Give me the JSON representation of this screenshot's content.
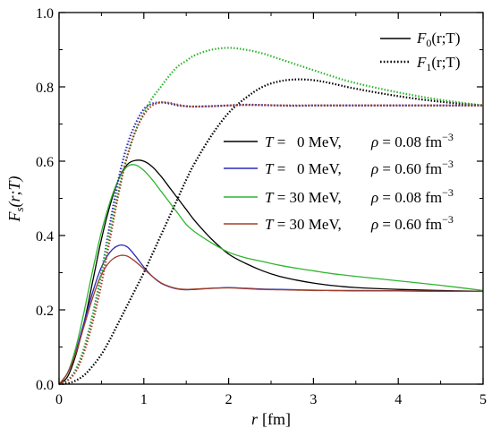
{
  "chart_data": {
    "type": "line",
    "xlabel": {
      "var": "r",
      "unit": "[fm]"
    },
    "ylabel": {
      "var": "F",
      "sub": "s",
      "args": "(r;T)"
    },
    "xlim": [
      0,
      5
    ],
    "ylim": [
      0,
      1.0
    ],
    "x_ticks": [
      0,
      1,
      2,
      3,
      4,
      5
    ],
    "x_tick_labels": [
      "0",
      "1",
      "2",
      "3",
      "4",
      "5"
    ],
    "y_ticks": [
      0,
      0.2,
      0.4,
      0.6,
      0.8,
      1.0
    ],
    "y_tick_labels": [
      "0.0",
      "0.2",
      "0.4",
      "0.6",
      "0.8",
      "1.0"
    ],
    "legend_style": [
      {
        "func": "F",
        "sub": "0",
        "args": "(r;T)",
        "dash": "solid"
      },
      {
        "func": "F",
        "sub": "1",
        "args": "(r;T)",
        "dash": "dotted"
      }
    ],
    "legend_series": [
      {
        "T_label": "T",
        "T_value": "=   0 MeV,",
        "rho_label": "ρ",
        "rho_value": "= 0.08 fm",
        "rho_exp": "−3",
        "color": "#000000"
      },
      {
        "T_label": "T",
        "T_value": "=   0 MeV,",
        "rho_label": "ρ",
        "rho_value": "= 0.60 fm",
        "rho_exp": "−3",
        "color": "#2a2ab8"
      },
      {
        "T_label": "T",
        "T_value": "= 30 MeV,",
        "rho_label": "ρ",
        "rho_value": "= 0.08 fm",
        "rho_exp": "−3",
        "color": "#2fb52f"
      },
      {
        "T_label": "T",
        "T_value": "= 30 MeV,",
        "rho_label": "ρ",
        "rho_value": "= 0.60 fm",
        "rho_exp": "−3",
        "color": "#a0402a"
      }
    ],
    "x": [
      0,
      0.1,
      0.2,
      0.3,
      0.4,
      0.5,
      0.6,
      0.7,
      0.8,
      0.9,
      1.0,
      1.1,
      1.2,
      1.3,
      1.4,
      1.5,
      1.6,
      1.8,
      2.0,
      2.2,
      2.4,
      2.6,
      2.8,
      3.0,
      3.2,
      3.5,
      4.0,
      4.5,
      5.0
    ],
    "series": [
      {
        "func": "F0",
        "T": 0,
        "rho": 0.08,
        "color": "#000000",
        "dash": "solid",
        "values": [
          0,
          0.02,
          0.08,
          0.17,
          0.28,
          0.39,
          0.48,
          0.55,
          0.59,
          0.602,
          0.6,
          0.585,
          0.56,
          0.53,
          0.5,
          0.47,
          0.44,
          0.39,
          0.35,
          0.325,
          0.305,
          0.29,
          0.28,
          0.272,
          0.266,
          0.26,
          0.255,
          0.252,
          0.25
        ]
      },
      {
        "func": "F0",
        "T": 0,
        "rho": 0.6,
        "color": "#2a2ab8",
        "dash": "solid",
        "values": [
          0,
          0.03,
          0.09,
          0.17,
          0.25,
          0.315,
          0.355,
          0.373,
          0.37,
          0.345,
          0.315,
          0.29,
          0.272,
          0.262,
          0.256,
          0.254,
          0.255,
          0.258,
          0.26,
          0.258,
          0.256,
          0.255,
          0.254,
          0.253,
          0.252,
          0.252,
          0.251,
          0.25,
          0.25
        ]
      },
      {
        "func": "F0",
        "T": 30,
        "rho": 0.08,
        "color": "#2fb52f",
        "dash": "solid",
        "values": [
          0,
          0.03,
          0.1,
          0.2,
          0.31,
          0.41,
          0.49,
          0.55,
          0.585,
          0.59,
          0.575,
          0.55,
          0.52,
          0.49,
          0.46,
          0.43,
          0.41,
          0.38,
          0.355,
          0.34,
          0.33,
          0.32,
          0.312,
          0.305,
          0.298,
          0.29,
          0.278,
          0.266,
          0.252
        ]
      },
      {
        "func": "F0",
        "T": 30,
        "rho": 0.6,
        "color": "#a0402a",
        "dash": "solid",
        "values": [
          0,
          0.03,
          0.085,
          0.16,
          0.235,
          0.295,
          0.33,
          0.345,
          0.345,
          0.33,
          0.31,
          0.29,
          0.273,
          0.263,
          0.257,
          0.255,
          0.256,
          0.258,
          0.259,
          0.257,
          0.255,
          0.254,
          0.253,
          0.252,
          0.252,
          0.251,
          0.251,
          0.25,
          0.25
        ]
      },
      {
        "func": "F1",
        "T": 0,
        "rho": 0.08,
        "color": "#000000",
        "dash": "dotted",
        "values": [
          0,
          0.002,
          0.01,
          0.025,
          0.05,
          0.08,
          0.12,
          0.165,
          0.21,
          0.255,
          0.3,
          0.35,
          0.4,
          0.45,
          0.5,
          0.55,
          0.595,
          0.67,
          0.73,
          0.77,
          0.8,
          0.815,
          0.82,
          0.818,
          0.81,
          0.795,
          0.775,
          0.76,
          0.75
        ]
      },
      {
        "func": "F1",
        "T": 0,
        "rho": 0.6,
        "color": "#2a2ab8",
        "dash": "dotted",
        "values": [
          0,
          0.01,
          0.04,
          0.1,
          0.19,
          0.3,
          0.43,
          0.55,
          0.64,
          0.7,
          0.74,
          0.755,
          0.758,
          0.755,
          0.75,
          0.748,
          0.747,
          0.748,
          0.75,
          0.752,
          0.751,
          0.75,
          0.749,
          0.75,
          0.75,
          0.75,
          0.75,
          0.75,
          0.75
        ]
      },
      {
        "func": "F1",
        "T": 30,
        "rho": 0.08,
        "color": "#2fb52f",
        "dash": "dotted",
        "values": [
          0,
          0.01,
          0.04,
          0.1,
          0.19,
          0.3,
          0.41,
          0.52,
          0.61,
          0.68,
          0.73,
          0.77,
          0.8,
          0.83,
          0.855,
          0.87,
          0.885,
          0.9,
          0.905,
          0.9,
          0.89,
          0.875,
          0.86,
          0.845,
          0.83,
          0.81,
          0.785,
          0.765,
          0.75
        ]
      },
      {
        "func": "F1",
        "T": 30,
        "rho": 0.6,
        "color": "#a0402a",
        "dash": "dotted",
        "values": [
          0,
          0.01,
          0.035,
          0.09,
          0.17,
          0.27,
          0.39,
          0.51,
          0.61,
          0.68,
          0.725,
          0.75,
          0.758,
          0.757,
          0.752,
          0.748,
          0.747,
          0.748,
          0.75,
          0.751,
          0.751,
          0.75,
          0.75,
          0.75,
          0.75,
          0.75,
          0.75,
          0.75,
          0.75
        ]
      }
    ]
  }
}
